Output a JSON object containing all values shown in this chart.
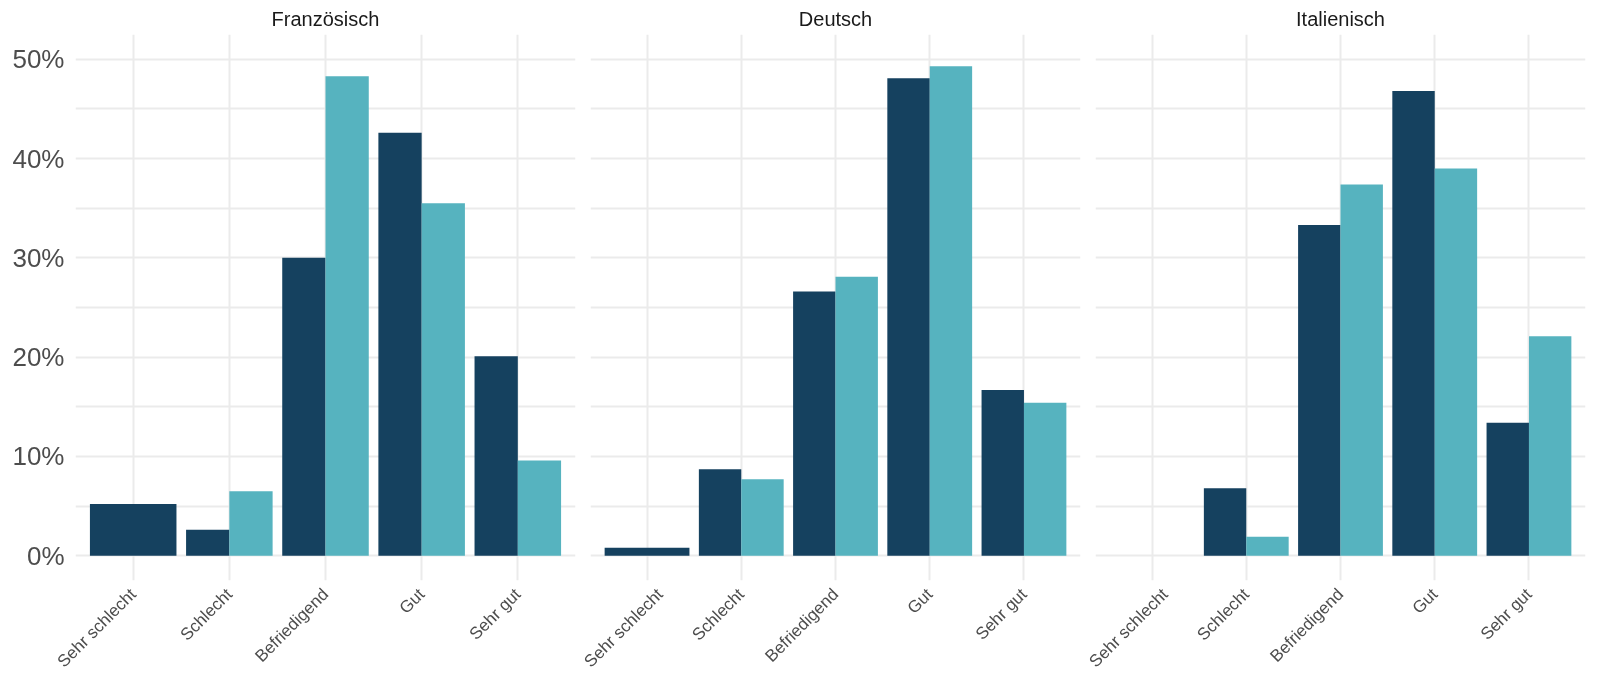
{
  "chart_data": [
    {
      "type": "bar",
      "title": "Französisch",
      "categories": [
        "Sehr schlecht",
        "Schlecht",
        "Befriedigend",
        "Gut",
        "Sehr gut"
      ],
      "series": [
        {
          "color": "#15415f",
          "values": [
            5.2,
            2.6,
            30.0,
            42.6,
            20.1
          ]
        },
        {
          "color": "#56b3bf",
          "values": [
            null,
            6.5,
            48.3,
            35.5,
            9.6
          ]
        }
      ],
      "ylim": [
        -2.5,
        52.5
      ],
      "yticks": [
        {
          "value": 0,
          "label": "0%"
        },
        {
          "value": 5,
          "label": null
        },
        {
          "value": 10,
          "label": "10%"
        },
        {
          "value": 15,
          "label": null
        },
        {
          "value": 20,
          "label": "20%"
        },
        {
          "value": 25,
          "label": null
        },
        {
          "value": 30,
          "label": "30%"
        },
        {
          "value": 35,
          "label": null
        },
        {
          "value": 40,
          "label": "40%"
        },
        {
          "value": 45,
          "label": null
        },
        {
          "value": 50,
          "label": "50%"
        }
      ],
      "grid": true
    },
    {
      "type": "bar",
      "title": "Deutsch",
      "categories": [
        "Sehr schlecht",
        "Schlecht",
        "Befriedigend",
        "Gut",
        "Sehr gut"
      ],
      "series": [
        {
          "color": "#15415f",
          "values": [
            0.8,
            8.7,
            26.6,
            48.1,
            16.7
          ]
        },
        {
          "color": "#56b3bf",
          "values": [
            null,
            7.7,
            28.1,
            49.3,
            15.4
          ]
        }
      ],
      "ylim": [
        -2.5,
        52.5
      ],
      "yticks": [
        {
          "value": 0,
          "label": null
        },
        {
          "value": 5,
          "label": null
        },
        {
          "value": 10,
          "label": null
        },
        {
          "value": 15,
          "label": null
        },
        {
          "value": 20,
          "label": null
        },
        {
          "value": 25,
          "label": null
        },
        {
          "value": 30,
          "label": null
        },
        {
          "value": 35,
          "label": null
        },
        {
          "value": 40,
          "label": null
        },
        {
          "value": 45,
          "label": null
        },
        {
          "value": 50,
          "label": null
        }
      ],
      "grid": true,
      "tick_labels": "x"
    },
    {
      "type": "bar",
      "title": "Italienisch",
      "categories": [
        "Sehr schlecht",
        "Schlecht",
        "Befriedigend",
        "Gut",
        "Sehr gut"
      ],
      "series": [
        {
          "color": "#15415f",
          "values": [
            null,
            6.8,
            33.3,
            46.8,
            13.4
          ]
        },
        {
          "color": "#56b3bf",
          "values": [
            null,
            1.9,
            37.4,
            39.0,
            22.1
          ]
        }
      ],
      "ylim": [
        -2.5,
        52.5
      ],
      "yticks": [
        {
          "value": 0,
          "label": null
        },
        {
          "value": 5,
          "label": null
        },
        {
          "value": 10,
          "label": null
        },
        {
          "value": 15,
          "label": null
        },
        {
          "value": 20,
          "label": null
        },
        {
          "value": 25,
          "label": null
        },
        {
          "value": 30,
          "label": null
        },
        {
          "value": 35,
          "label": null
        },
        {
          "value": 40,
          "label": null
        },
        {
          "value": 45,
          "label": null
        },
        {
          "value": 50,
          "label": null
        }
      ],
      "grid": true,
      "tick_labels": "x"
    }
  ]
}
